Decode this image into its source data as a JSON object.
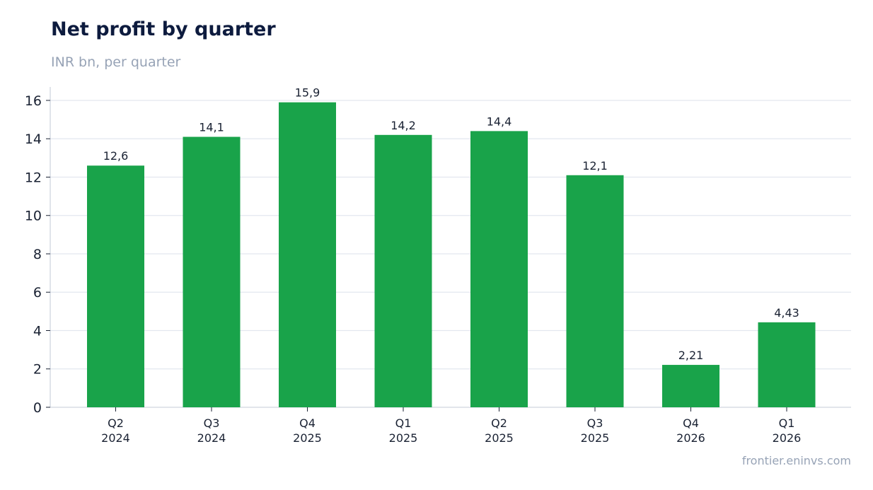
{
  "header": {
    "title": "Net profit by quarter",
    "subtitle": "INR bn, per quarter"
  },
  "footer": {
    "source": "frontier.eninvs.com"
  },
  "colors": {
    "bar": "#19a34a",
    "grid": "#e3e7ef",
    "axis": "#d0d5df"
  },
  "chart_data": {
    "type": "bar",
    "title": "Net profit by quarter",
    "subtitle": "INR bn, per quarter",
    "xlabel": "",
    "ylabel": "",
    "categories": [
      [
        "Q2",
        "2024"
      ],
      [
        "Q3",
        "2024"
      ],
      [
        "Q4",
        "2025"
      ],
      [
        "Q1",
        "2025"
      ],
      [
        "Q2",
        "2025"
      ],
      [
        "Q3",
        "2025"
      ],
      [
        "Q4",
        "2026"
      ],
      [
        "Q1",
        "2026"
      ]
    ],
    "values": [
      12.6,
      14.1,
      15.9,
      14.2,
      14.4,
      12.1,
      2.21,
      4.43
    ],
    "data_labels": [
      "12,6",
      "14,1",
      "15,9",
      "14,2",
      "14,4",
      "12,1",
      "2,21",
      "4,43"
    ],
    "ylim": [
      0,
      16.7
    ],
    "yticks": [
      0,
      2,
      4,
      6,
      8,
      10,
      12,
      14,
      16
    ],
    "grid": true,
    "legend": "none"
  }
}
